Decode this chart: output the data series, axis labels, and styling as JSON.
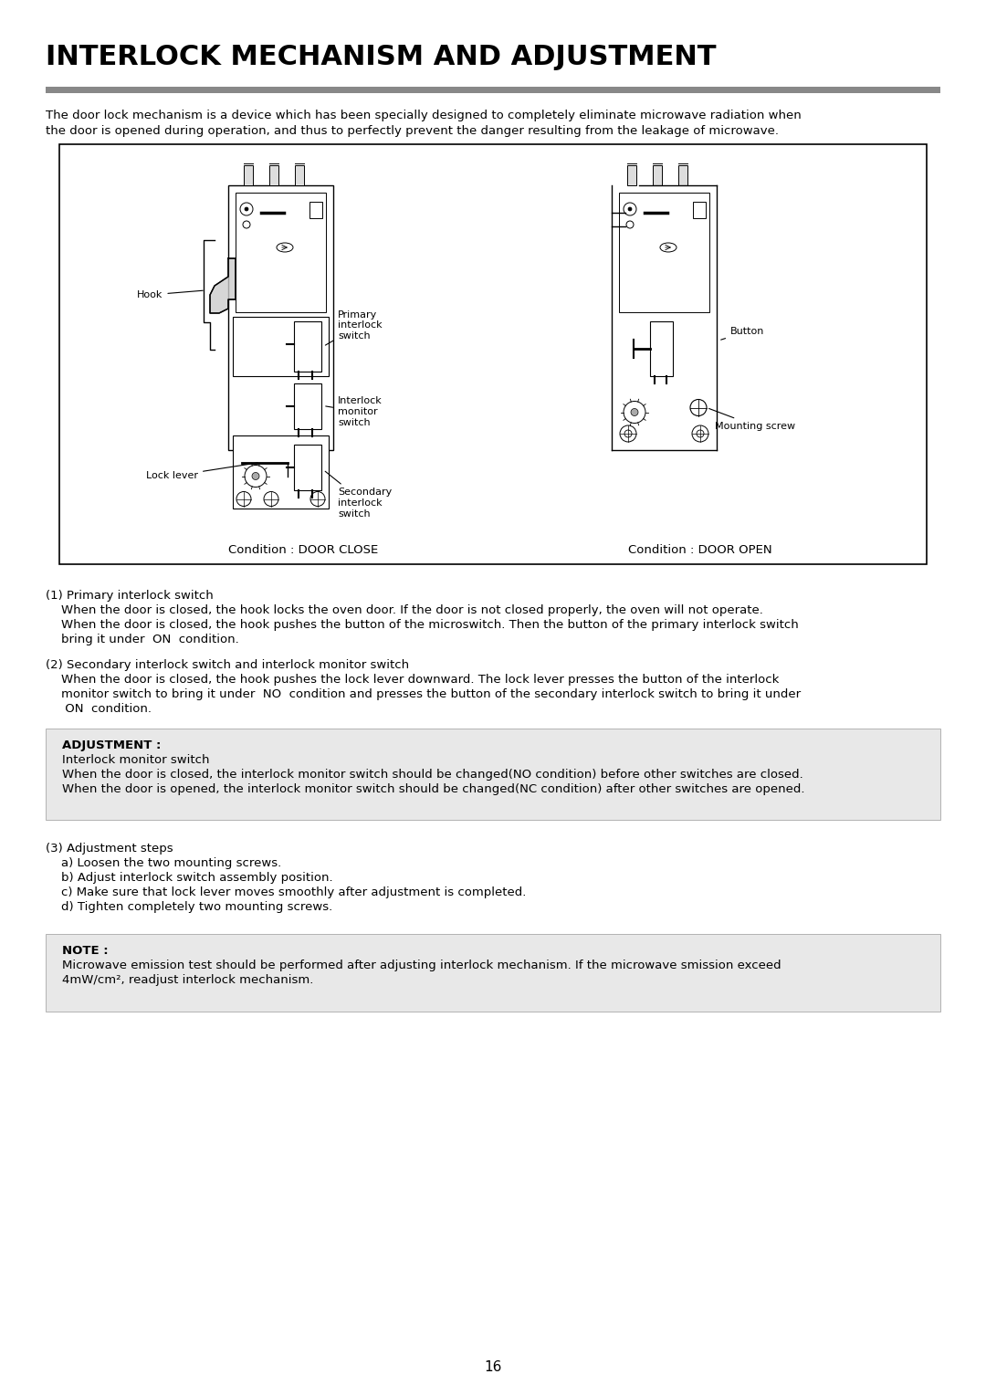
{
  "title": "INTERLOCK MECHANISM AND ADJUSTMENT",
  "bg_color": "#ffffff",
  "intro_text_line1": "The door lock mechanism is a device which has been specially designed to completely eliminate microwave radiation when",
  "intro_text_line2": "the door is opened during operation, and thus to perfectly prevent the danger resulting from the leakage of microwave.",
  "section1_title": "(1) Primary interlock switch",
  "section1_line1": "    When the door is closed, the hook locks the oven door. If the door is not closed properly, the oven will not operate.",
  "section1_line2": "    When the door is closed, the hook pushes the button of the microswitch. Then the button of the primary interlock switch",
  "section1_line3": "    bring it under  ON  condition.",
  "section2_title": "(2) Secondary interlock switch and interlock monitor switch",
  "section2_line1": "    When the door is closed, the hook pushes the lock lever downward. The lock lever presses the button of the interlock",
  "section2_line2": "    monitor switch to bring it under  NO  condition and presses the button of the secondary interlock switch to bring it under",
  "section2_line3": "     ON  condition.",
  "adjustment_box_color": "#e8e8e8",
  "adjustment_title": "ADJUSTMENT :",
  "adjustment_subtitle": "Interlock monitor switch",
  "adjustment_line1": "When the door is closed, the interlock monitor switch should be changed(NO condition) before other switches are closed.",
  "adjustment_line2": "When the door is opened, the interlock monitor switch should be changed(NC condition) after other switches are opened.",
  "section3_title": "(3) Adjustment steps",
  "section3_items": [
    "    a) Loosen the two mounting screws.",
    "    b) Adjust interlock switch assembly position.",
    "    c) Make sure that lock lever moves smoothly after adjustment is completed.",
    "    d) Tighten completely two mounting screws."
  ],
  "note_box_color": "#e8e8e8",
  "note_title": "NOTE :",
  "note_line1": "Microwave emission test should be performed after adjusting interlock mechanism. If the microwave smission exceed",
  "note_line2": "4mW/cm², readjust interlock mechanism.",
  "page_number": "16",
  "diagram_caption_left": "Condition : DOOR CLOSE",
  "diagram_caption_right": "Condition : DOOR OPEN"
}
